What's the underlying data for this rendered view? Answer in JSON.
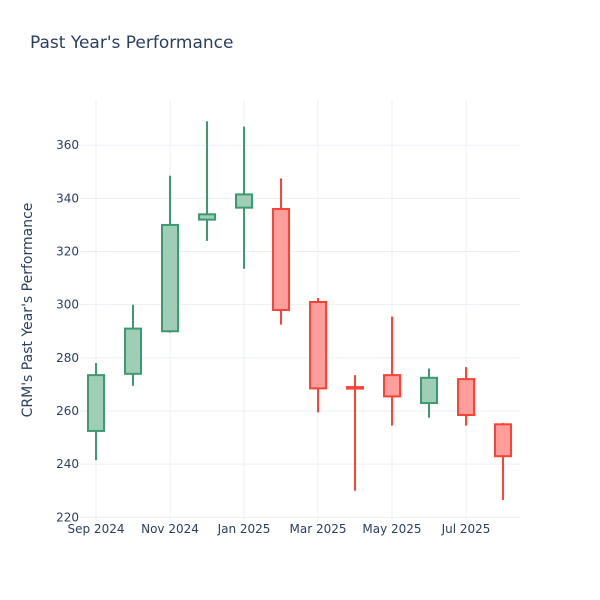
{
  "chart_data": {
    "type": "candlestick",
    "title": "Past Year's Performance",
    "xlabel": "",
    "ylabel": "CRM's Past Year's Performance",
    "ylim": [
      219,
      377
    ],
    "grid": true,
    "x_ticks": [
      "Sep 2024",
      "Nov 2024",
      "Jan 2025",
      "Mar 2025",
      "May 2025",
      "Jul 2025"
    ],
    "y_ticks": [
      220,
      240,
      260,
      280,
      300,
      320,
      340,
      360
    ],
    "colors": {
      "increasing": "#3d9970",
      "increasing_fill": "#9fcdb6",
      "decreasing": "#ff4136",
      "decreasing_fill": "#ff9e9a"
    },
    "candles": [
      {
        "date": "2024-09",
        "open": 252.5,
        "high": 278.0,
        "low": 241.5,
        "close": 273.5
      },
      {
        "date": "2024-10",
        "open": 274.0,
        "high": 300.0,
        "low": 269.5,
        "close": 291.0
      },
      {
        "date": "2024-11",
        "open": 290.0,
        "high": 348.5,
        "low": 289.5,
        "close": 330.0
      },
      {
        "date": "2024-12",
        "open": 332.0,
        "high": 369.0,
        "low": 324.0,
        "close": 334.0
      },
      {
        "date": "2025-01",
        "open": 336.5,
        "high": 367.0,
        "low": 313.5,
        "close": 341.5
      },
      {
        "date": "2025-02",
        "open": 336.0,
        "high": 347.5,
        "low": 292.5,
        "close": 298.0
      },
      {
        "date": "2025-03",
        "open": 301.0,
        "high": 302.5,
        "low": 259.5,
        "close": 268.5
      },
      {
        "date": "2025-04",
        "open": 269.0,
        "high": 273.5,
        "low": 230.0,
        "close": 268.5
      },
      {
        "date": "2025-05",
        "open": 273.5,
        "high": 295.5,
        "low": 254.5,
        "close": 265.5
      },
      {
        "date": "2025-06",
        "open": 263.0,
        "high": 276.0,
        "low": 257.5,
        "close": 272.5
      },
      {
        "date": "2025-07",
        "open": 272.0,
        "high": 276.5,
        "low": 254.5,
        "close": 258.5
      },
      {
        "date": "2025-08",
        "open": 255.0,
        "high": 255.5,
        "low": 226.5,
        "close": 243.0
      }
    ]
  }
}
